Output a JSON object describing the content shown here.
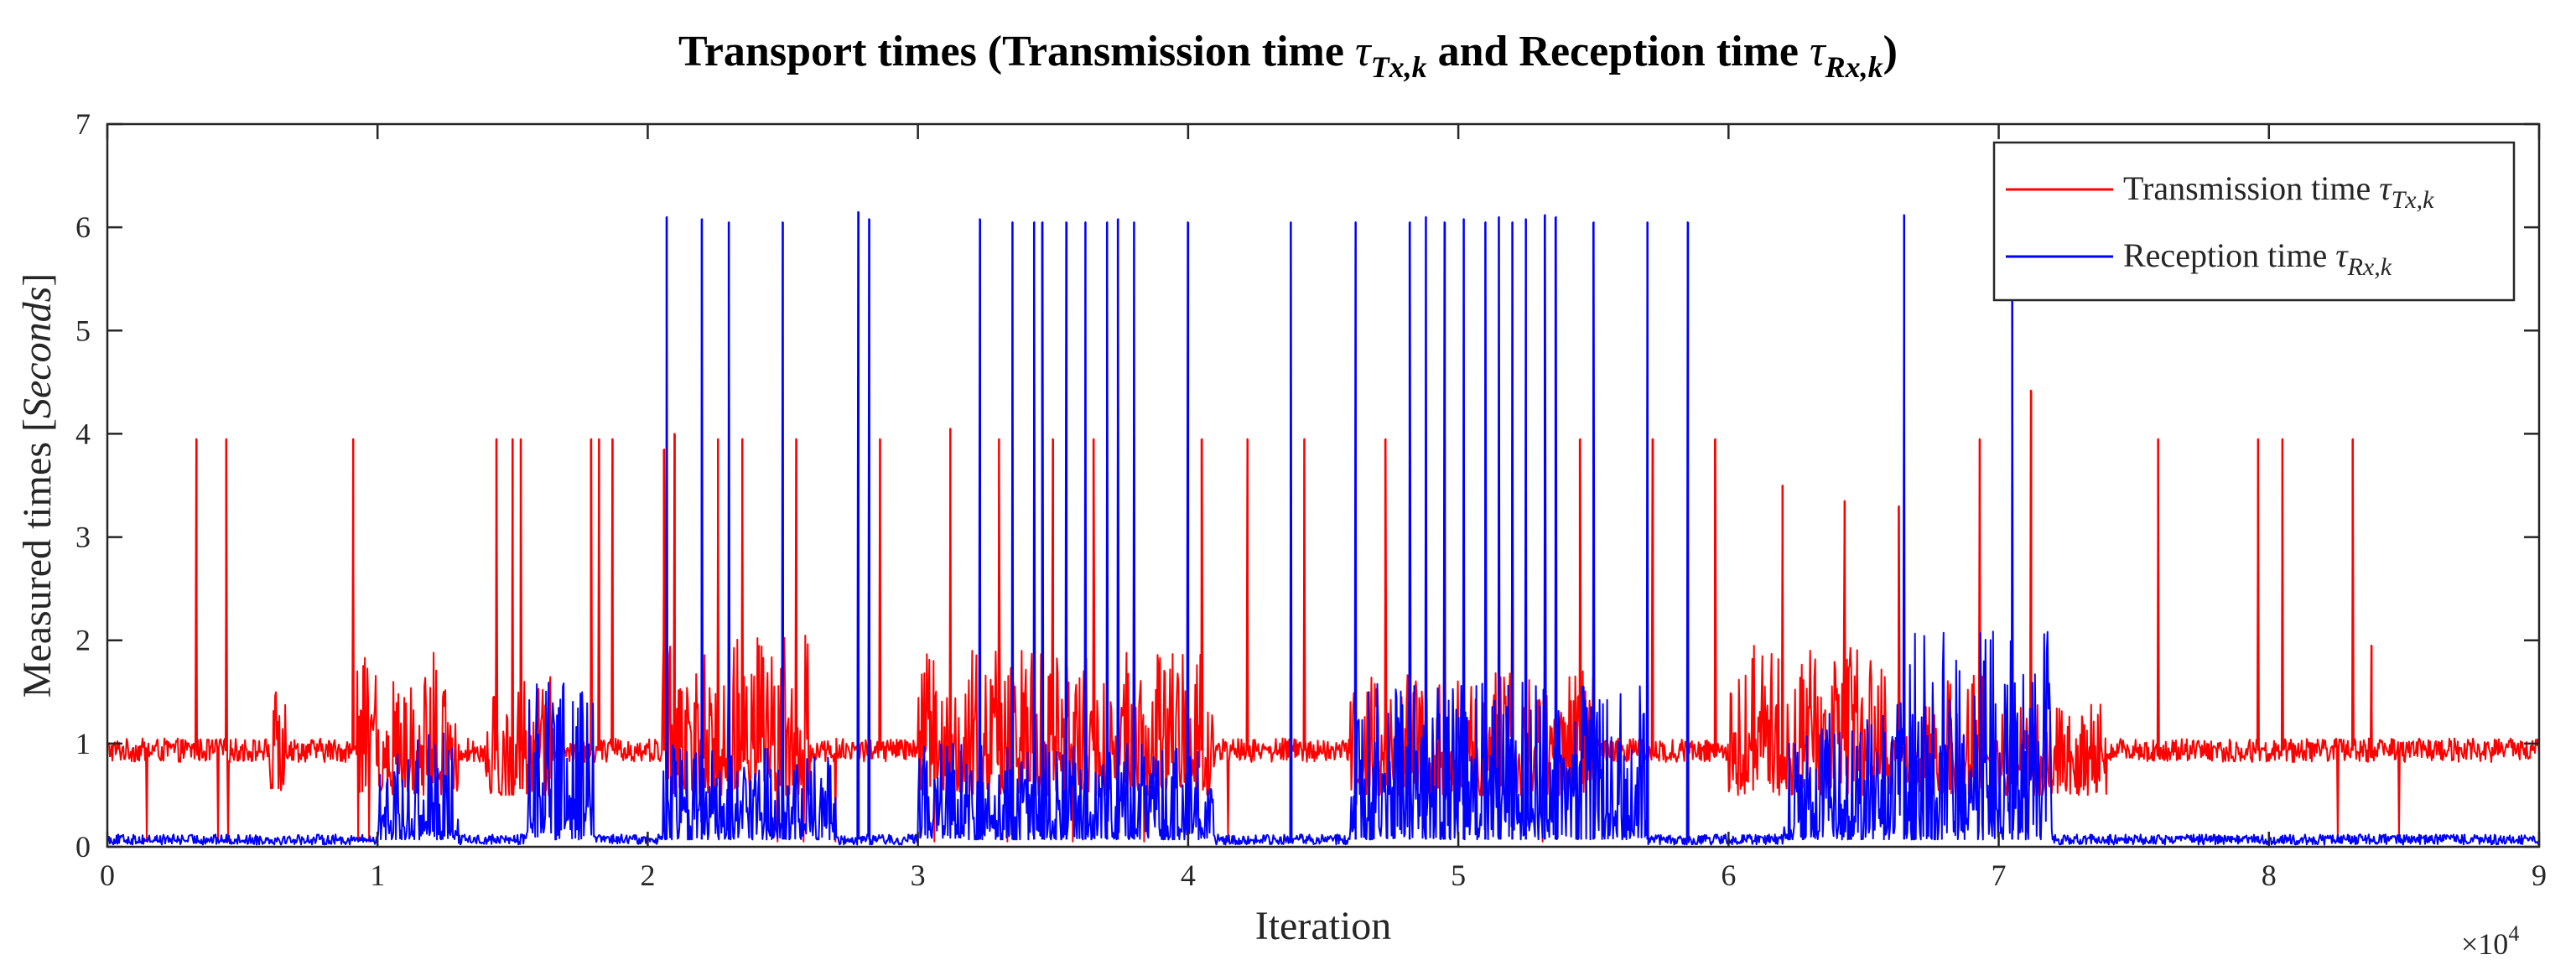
{
  "chart_data": {
    "type": "line",
    "title": {
      "prefix": "Transport times (Transmission time ",
      "tx_symbol": "τ",
      "tx_subscript": "Tx,k",
      "middle": " and Reception time ",
      "rx_symbol": "τ",
      "rx_subscript": "Rx,k",
      "suffix": ")"
    },
    "xlabel": "Iteration",
    "ylabel": {
      "prefix": "Measured times [",
      "unit": "Seconds",
      "suffix": "]"
    },
    "x_scale_note": {
      "base": "×10",
      "exponent": "4"
    },
    "xlim": [
      0,
      9
    ],
    "ylim": [
      0,
      7
    ],
    "x_ticks": [
      "0",
      "1",
      "2",
      "3",
      "4",
      "5",
      "6",
      "7",
      "8",
      "9"
    ],
    "y_ticks": [
      "0",
      "1",
      "2",
      "3",
      "4",
      "5",
      "6",
      "7"
    ],
    "grid": false,
    "legend_position": "top-right",
    "series": [
      {
        "name": "Transmission time τTx,k",
        "legend_label": "Transmission time  ",
        "legend_symbol": "τ",
        "legend_subscript": "Tx,k",
        "color": "#ff0000",
        "baseline": 0.93,
        "noise_band": [
          0.82,
          1.05
        ],
        "spikes": [
          [
            0.33,
            3.95
          ],
          [
            0.44,
            3.95
          ],
          [
            0.91,
            3.95
          ],
          [
            1.44,
            3.95
          ],
          [
            1.5,
            3.95
          ],
          [
            1.53,
            3.95
          ],
          [
            1.79,
            3.95
          ],
          [
            1.82,
            3.95
          ],
          [
            1.87,
            3.95
          ],
          [
            2.06,
            3.85
          ],
          [
            2.1,
            4.0
          ],
          [
            2.26,
            3.95
          ],
          [
            2.35,
            3.95
          ],
          [
            2.55,
            3.95
          ],
          [
            2.86,
            3.95
          ],
          [
            3.12,
            4.05
          ],
          [
            3.3,
            3.95
          ],
          [
            3.5,
            3.95
          ],
          [
            3.65,
            3.95
          ],
          [
            3.8,
            3.95
          ],
          [
            4.05,
            3.95
          ],
          [
            4.22,
            3.95
          ],
          [
            4.43,
            3.95
          ],
          [
            4.73,
            3.95
          ],
          [
            4.95,
            3.95
          ],
          [
            5.2,
            3.95
          ],
          [
            5.45,
            3.95
          ],
          [
            5.72,
            3.95
          ],
          [
            5.95,
            3.95
          ],
          [
            6.2,
            3.5
          ],
          [
            6.43,
            3.35
          ],
          [
            6.63,
            3.3
          ],
          [
            6.93,
            3.95
          ],
          [
            7.12,
            4.42
          ],
          [
            7.59,
            3.95
          ],
          [
            7.96,
            3.95
          ],
          [
            8.05,
            3.95
          ],
          [
            8.31,
            3.95
          ],
          [
            8.38,
            1.95
          ]
        ],
        "bursts": [
          [
            0.6,
            0.66,
            1.5
          ],
          [
            0.92,
            1.3,
            1.9
          ],
          [
            1.4,
            1.65,
            1.65
          ],
          [
            2.05,
            2.6,
            2.1
          ],
          [
            3.0,
            4.1,
            1.9
          ],
          [
            4.6,
            5.5,
            1.7
          ],
          [
            6.0,
            6.6,
            1.95
          ],
          [
            6.65,
            6.95,
            1.7
          ],
          [
            7.0,
            7.4,
            1.4
          ]
        ]
      },
      {
        "name": "Reception time τRx,k",
        "legend_label": "Reception time ",
        "legend_symbol": "τ",
        "legend_subscript": "Rx,k",
        "color": "#0000ff",
        "baseline": 0.07,
        "noise_band": [
          0.02,
          0.12
        ],
        "spikes": [
          [
            2.07,
            6.1
          ],
          [
            2.2,
            6.08
          ],
          [
            2.3,
            6.05
          ],
          [
            2.5,
            6.05
          ],
          [
            2.78,
            6.15
          ],
          [
            2.82,
            6.08
          ],
          [
            3.23,
            6.08
          ],
          [
            3.35,
            6.05
          ],
          [
            3.43,
            6.05
          ],
          [
            3.46,
            6.05
          ],
          [
            3.55,
            6.05
          ],
          [
            3.62,
            6.05
          ],
          [
            3.7,
            6.05
          ],
          [
            3.74,
            6.08
          ],
          [
            3.8,
            6.05
          ],
          [
            4.0,
            6.05
          ],
          [
            4.38,
            6.05
          ],
          [
            4.62,
            6.05
          ],
          [
            4.82,
            6.05
          ],
          [
            4.88,
            6.1
          ],
          [
            4.95,
            6.05
          ],
          [
            5.02,
            6.08
          ],
          [
            5.1,
            6.05
          ],
          [
            5.15,
            6.1
          ],
          [
            5.2,
            6.05
          ],
          [
            5.25,
            6.08
          ],
          [
            5.32,
            6.12
          ],
          [
            5.36,
            6.1
          ],
          [
            5.5,
            6.05
          ],
          [
            5.7,
            6.05
          ],
          [
            5.85,
            6.05
          ],
          [
            6.65,
            6.12
          ],
          [
            7.05,
            5.3
          ]
        ],
        "bursts": [
          [
            1.0,
            1.3,
            1.1
          ],
          [
            1.55,
            1.8,
            1.6
          ],
          [
            2.05,
            2.7,
            1.0
          ],
          [
            3.0,
            4.1,
            1.0
          ],
          [
            4.6,
            5.7,
            1.6
          ],
          [
            6.2,
            6.6,
            1.3
          ],
          [
            6.6,
            7.2,
            2.1
          ]
        ]
      }
    ]
  }
}
